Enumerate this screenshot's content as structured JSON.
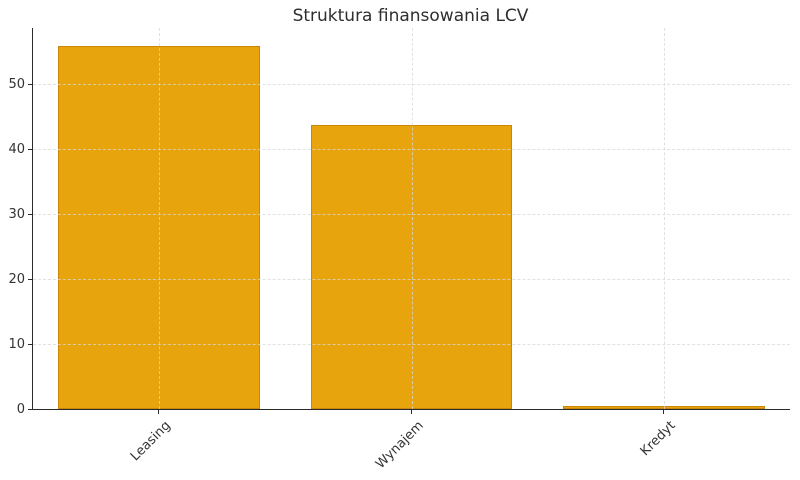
{
  "page": {
    "background_color": "#ffffff"
  },
  "chart_data": {
    "type": "bar",
    "title": "Struktura finansowania LCV",
    "categories": [
      "Leasing",
      "Wynajem",
      "Kredyt"
    ],
    "values": [
      55.8,
      43.7,
      0.5
    ],
    "xlabel": "",
    "ylabel": "",
    "ylim": [
      0,
      58.6
    ],
    "yticks": [
      0,
      10,
      20,
      30,
      40,
      50
    ],
    "grid": true,
    "grid_style": "dashed",
    "legend": "none",
    "x_tick_rotation": 45,
    "bar_width_fraction": 0.8,
    "colors": {
      "bar_fill": "#E8A40C",
      "bar_edge": "#C8860B",
      "grid": "#d7d7d7",
      "axis": "#2b2b2b",
      "text": "#333333",
      "title_text": "#2e2e2e"
    }
  }
}
